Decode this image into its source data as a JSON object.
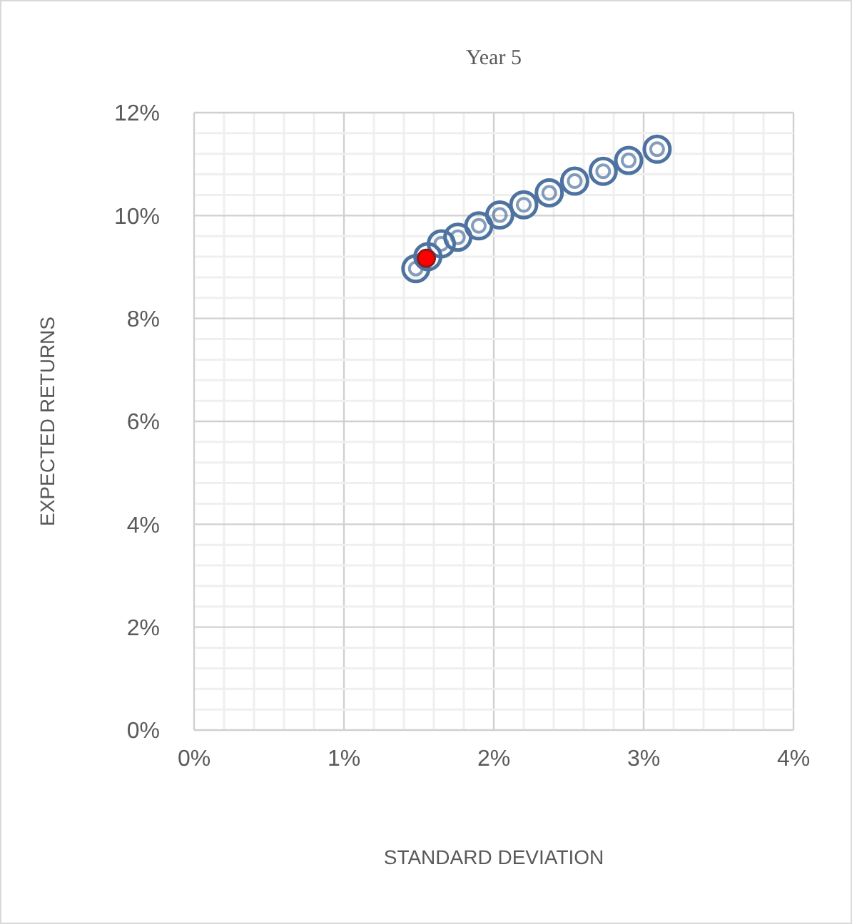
{
  "chart_data": {
    "type": "scatter",
    "title": "Year 5",
    "xlabel": "STANDARD DEVIATION",
    "ylabel": "EXPECTED RETURNS",
    "xlim": [
      0,
      4
    ],
    "ylim": [
      0,
      12
    ],
    "xticks": [
      {
        "value": 0,
        "label": "0%"
      },
      {
        "value": 0.2,
        "label": null
      },
      {
        "value": 0.4,
        "label": null
      },
      {
        "value": 0.6,
        "label": null
      },
      {
        "value": 0.8,
        "label": null
      },
      {
        "value": 1,
        "label": "1%"
      },
      {
        "value": 1.2,
        "label": null
      },
      {
        "value": 1.4,
        "label": null
      },
      {
        "value": 1.6,
        "label": null
      },
      {
        "value": 1.8,
        "label": null
      },
      {
        "value": 2,
        "label": "2%"
      },
      {
        "value": 2.2,
        "label": null
      },
      {
        "value": 2.4,
        "label": null
      },
      {
        "value": 2.6,
        "label": null
      },
      {
        "value": 2.8,
        "label": null
      },
      {
        "value": 3,
        "label": "3%"
      },
      {
        "value": 3.2,
        "label": null
      },
      {
        "value": 3.4,
        "label": null
      },
      {
        "value": 3.6,
        "label": null
      },
      {
        "value": 3.8,
        "label": null
      },
      {
        "value": 4,
        "label": "4%"
      }
    ],
    "yticks": [
      {
        "value": 0,
        "label": "0%"
      },
      {
        "value": 0.4,
        "label": null
      },
      {
        "value": 0.8,
        "label": null
      },
      {
        "value": 1.2,
        "label": null
      },
      {
        "value": 1.6,
        "label": null
      },
      {
        "value": 2,
        "label": "2%"
      },
      {
        "value": 2.4,
        "label": null
      },
      {
        "value": 2.8,
        "label": null
      },
      {
        "value": 3.2,
        "label": null
      },
      {
        "value": 3.6,
        "label": null
      },
      {
        "value": 4,
        "label": "4%"
      },
      {
        "value": 4.4,
        "label": null
      },
      {
        "value": 4.8,
        "label": null
      },
      {
        "value": 5.2,
        "label": null
      },
      {
        "value": 5.6,
        "label": null
      },
      {
        "value": 6,
        "label": "6%"
      },
      {
        "value": 6.4,
        "label": null
      },
      {
        "value": 6.8,
        "label": null
      },
      {
        "value": 7.2,
        "label": null
      },
      {
        "value": 7.6,
        "label": null
      },
      {
        "value": 8,
        "label": "8%"
      },
      {
        "value": 8.4,
        "label": null
      },
      {
        "value": 8.8,
        "label": null
      },
      {
        "value": 9.2,
        "label": null
      },
      {
        "value": 9.6,
        "label": null
      },
      {
        "value": 10,
        "label": "10%"
      },
      {
        "value": 10.4,
        "label": null
      },
      {
        "value": 10.8,
        "label": null
      },
      {
        "value": 11.2,
        "label": null
      },
      {
        "value": 11.6,
        "label": null
      },
      {
        "value": 12,
        "label": "12%"
      }
    ],
    "grid": true,
    "marker": "circle",
    "series": [
      {
        "color": "#4e73a0",
        "x": [
          1.48,
          1.56,
          1.65,
          1.76,
          1.9,
          2.04,
          2.2,
          2.37,
          2.54,
          2.73,
          2.9,
          3.09
        ],
        "values": [
          8.97,
          9.2,
          9.45,
          9.58,
          9.8,
          10.01,
          10.21,
          10.44,
          10.67,
          10.86,
          11.07,
          11.29
        ]
      },
      {
        "color": "#ff0000",
        "x": [
          1.55
        ],
        "values": [
          9.17
        ]
      }
    ]
  }
}
